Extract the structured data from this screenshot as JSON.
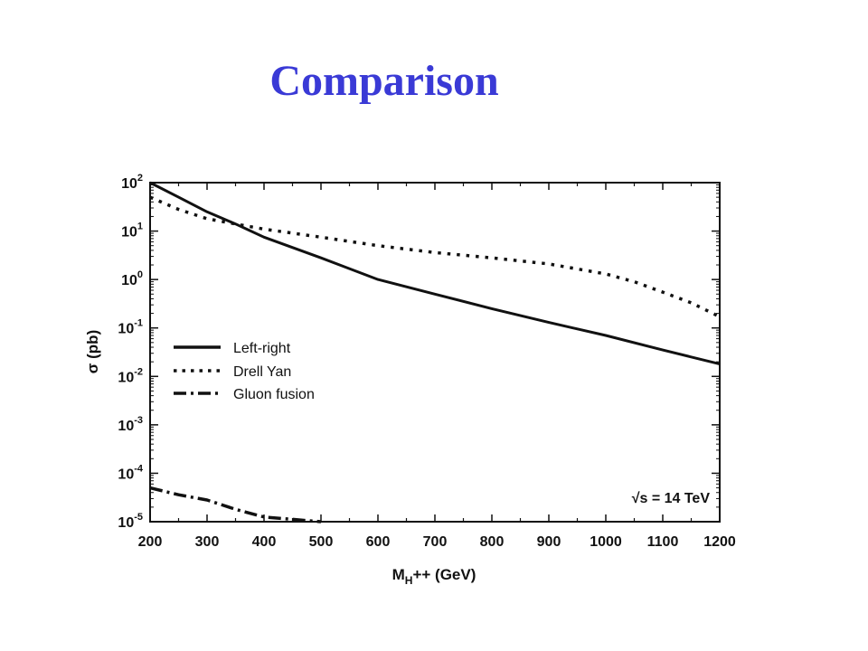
{
  "slide": {
    "title": "Comparison"
  },
  "chart_data": {
    "type": "line",
    "xlabel": "M",
    "xlabel_sub": "H",
    "xlabel_rest": "++ (GeV)",
    "ylabel": "σ (pb)",
    "xlim": [
      200,
      1200
    ],
    "ylim": [
      1e-05,
      100
    ],
    "yscale": "log",
    "x_ticks": [
      200,
      300,
      400,
      500,
      600,
      700,
      800,
      900,
      1000,
      1100,
      1200
    ],
    "y_ticks": [
      {
        "base": "10",
        "exp": "2"
      },
      {
        "base": "10",
        "exp": "1"
      },
      {
        "base": "10",
        "exp": "0"
      },
      {
        "base": "10",
        "exp": "-1"
      },
      {
        "base": "10",
        "exp": "-2"
      },
      {
        "base": "10",
        "exp": "-3"
      },
      {
        "base": "10",
        "exp": "-4"
      },
      {
        "base": "10",
        "exp": "-5"
      }
    ],
    "annotation": "√s = 14 TeV",
    "legend_position": "middle-left",
    "grid": false,
    "series": [
      {
        "name": "Left-right",
        "style": "solid",
        "x": [
          200,
          250,
          300,
          350,
          400,
          500,
          600,
          700,
          800,
          900,
          1000,
          1100,
          1200
        ],
        "y": [
          100,
          50,
          25,
          14,
          7.5,
          2.8,
          1.0,
          0.5,
          0.25,
          0.13,
          0.07,
          0.035,
          0.018
        ]
      },
      {
        "name": "Drell Yan",
        "style": "dotted",
        "x": [
          200,
          250,
          300,
          350,
          400,
          500,
          600,
          700,
          800,
          900,
          1000,
          1050,
          1100,
          1150,
          1200
        ],
        "y": [
          50,
          28,
          18,
          14,
          11,
          7.5,
          5,
          3.6,
          2.8,
          2.1,
          1.3,
          0.9,
          0.55,
          0.33,
          0.17
        ]
      },
      {
        "name": "Gluon fusion",
        "style": "dashdot",
        "x": [
          200,
          250,
          300,
          350,
          400,
          450,
          500
        ],
        "y": [
          5e-05,
          3.6e-05,
          2.8e-05,
          1.8e-05,
          1.25e-05,
          1.12e-05,
          1e-05
        ]
      }
    ]
  }
}
